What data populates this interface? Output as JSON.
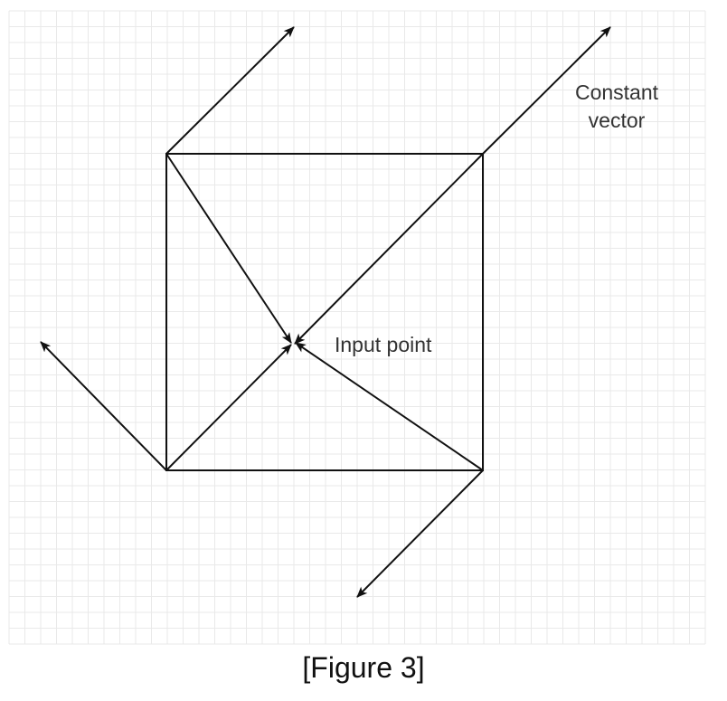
{
  "diagram": {
    "labels": {
      "constant_vector_line1": "Constant",
      "constant_vector_line2": "vector",
      "input_point": "Input point"
    },
    "caption": "[Figure 3]"
  },
  "colors": {
    "grid_line": "#e9e9e9",
    "stroke": "#111111",
    "label_text": "#333333"
  }
}
